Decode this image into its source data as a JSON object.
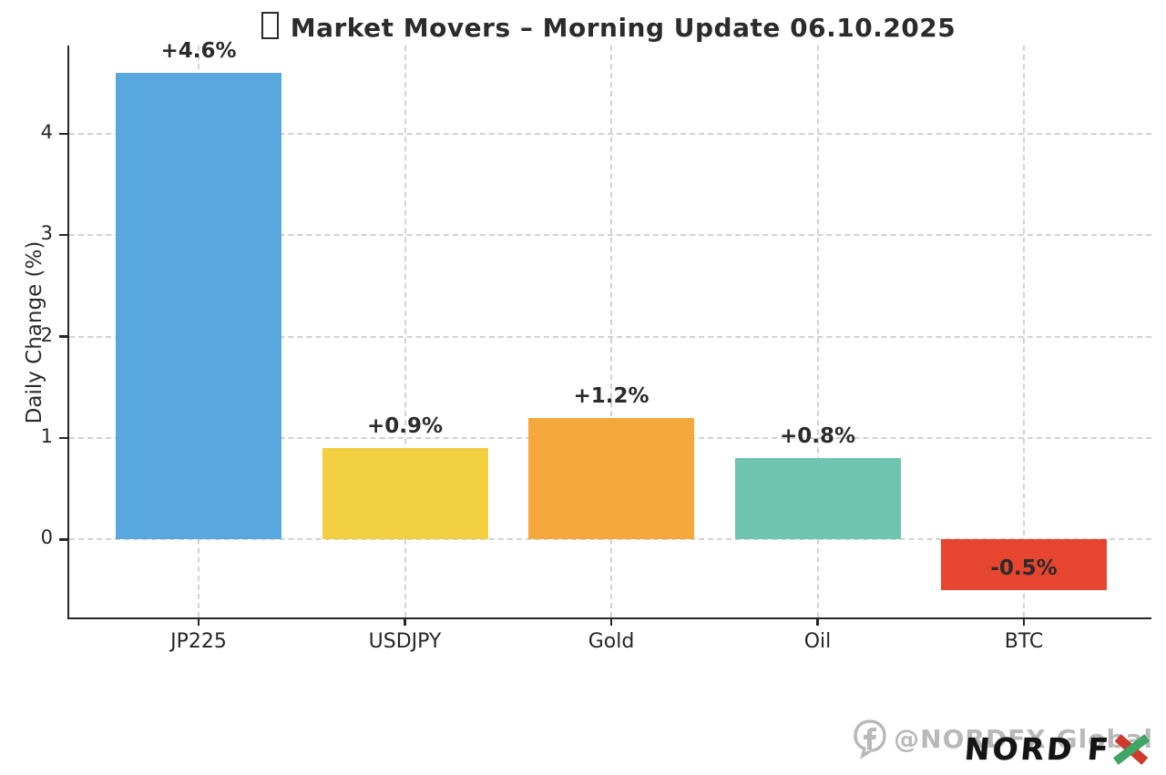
{
  "chart_data": {
    "type": "bar",
    "title": "Market Movers – Morning Update 06.10.2025",
    "title_icon": "missing-emoji-box",
    "categories": [
      "JP225",
      "USDJPY",
      "Gold",
      "Oil",
      "BTC"
    ],
    "values": [
      4.6,
      0.9,
      1.2,
      0.8,
      -0.5
    ],
    "labels": [
      "+4.6%",
      "+0.9%",
      "+1.2%",
      "+0.8%",
      "-0.5%"
    ],
    "bar_colors": [
      "#58A8DF",
      "#F2CF40",
      "#F5A83C",
      "#6EC4AE",
      "#E64530"
    ],
    "xlabel": "",
    "ylabel": "Daily Change (%)",
    "yticks": [
      0,
      1,
      2,
      3,
      4
    ],
    "ylim": [
      -0.77,
      4.87
    ],
    "grid": true,
    "grid_style": "dashed",
    "legend_position": "none"
  },
  "colors": {
    "text": "#2b2b2b",
    "spine": "#262626",
    "grid": "#d2d2d2",
    "watermark": "#b9b9b9",
    "logo_black": "#141414",
    "logo_green": "#3FA565",
    "logo_red": "#CE3A2E"
  },
  "watermark": {
    "icon": "facebook-icon",
    "text": "@NORDFX Global"
  },
  "logo": {
    "text": "NORD F",
    "x_letter": "X"
  }
}
